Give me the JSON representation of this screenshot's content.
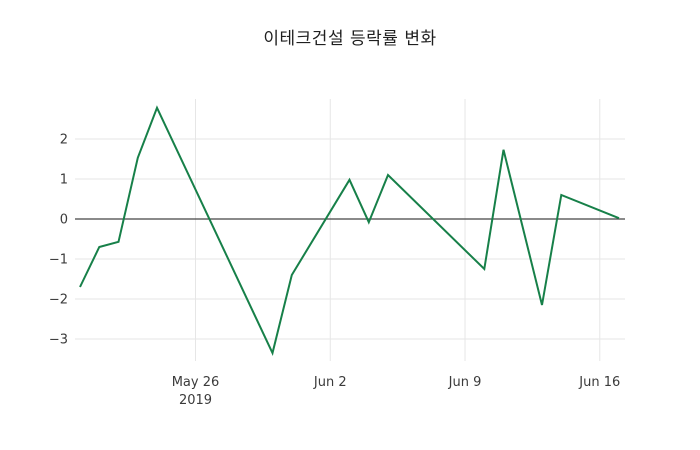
{
  "chart_data": {
    "type": "line",
    "title": "이테크건설 등락률 변화",
    "series": [
      {
        "name": "등락률",
        "x_labels": [
          "May 20",
          "May 21",
          "May 22",
          "May 23",
          "May 24",
          "May 30",
          "May 31",
          "Jun 3",
          "Jun 4",
          "Jun 5",
          "Jun 10",
          "Jun 11",
          "Jun 13",
          "Jun 14",
          "Jun 17"
        ],
        "x_day_offsets": [
          0,
          1,
          2,
          3,
          4,
          10,
          11,
          14,
          15,
          16,
          21,
          22,
          24,
          25,
          28
        ],
        "values": [
          -1.7,
          -0.7,
          -0.57,
          1.53,
          2.78,
          -3.35,
          -1.4,
          0.98,
          -0.08,
          1.1,
          -1.25,
          1.73,
          -2.15,
          0.6,
          0.02
        ]
      }
    ],
    "x_ticks": [
      {
        "offset": 6,
        "label": "May 26",
        "sublabel": "2019"
      },
      {
        "offset": 13,
        "label": "Jun 2",
        "sublabel": ""
      },
      {
        "offset": 20,
        "label": "Jun 9",
        "sublabel": ""
      },
      {
        "offset": 27,
        "label": "Jun 16",
        "sublabel": ""
      }
    ],
    "y_ticks": [
      {
        "value": 2,
        "label": "2"
      },
      {
        "value": 1,
        "label": "1"
      },
      {
        "value": 0,
        "label": "0"
      },
      {
        "value": -1,
        "label": "−1"
      },
      {
        "value": -2,
        "label": "−2"
      },
      {
        "value": -3,
        "label": "−3"
      }
    ],
    "xlim": [
      -0.26,
      28.31
    ],
    "ylim": [
      -3.55,
      3.0
    ],
    "xlabel": "",
    "ylabel": "",
    "legend_position": "none",
    "grid": true,
    "zero_line": true,
    "colors": {
      "line": "#178049",
      "grid": "#e6e6e6",
      "zero_line": "#444444",
      "tick_text": "#3b3b3b",
      "title_text": "#1f1f1f",
      "background": "#ffffff"
    }
  }
}
